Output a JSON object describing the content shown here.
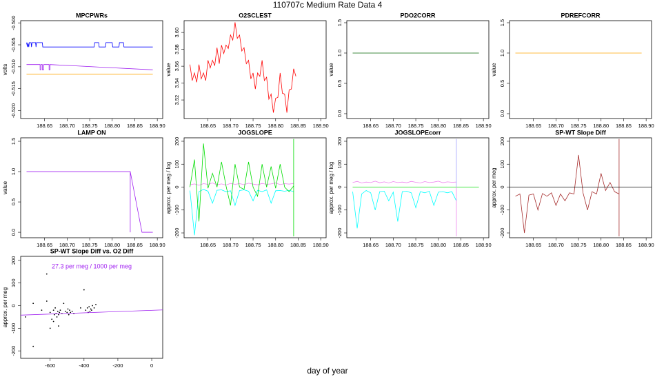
{
  "title": "110707c   Medium Rate Data 4",
  "x_label": "day of year",
  "chart_data": [
    {
      "type": "line",
      "title": "MPCPWRs",
      "y_label": "volts",
      "xlim": [
        188.597,
        188.912
      ],
      "xticks": [
        188.65,
        {
          "value": 188.7,
          "label": "188.70"
        },
        188.75,
        {
          "value": 188.8,
          "label": "188.80"
        },
        188.85,
        {
          "value": 188.9,
          "label": "188.90"
        }
      ],
      "ylim": [
        -0.5218,
        -0.4995
      ],
      "yticks": [
        {
          "value": -0.5,
          "label": "-0.500"
        },
        -0.505,
        {
          "value": -0.51,
          "label": "-0.510"
        },
        -0.515,
        {
          "value": -0.52,
          "label": "-0.520"
        }
      ],
      "series": [
        {
          "color": "#0000ff",
          "x": [
            188.61,
            188.612,
            188.613,
            188.615,
            188.616,
            188.62,
            188.621,
            188.622,
            188.63,
            188.631,
            188.632,
            188.645,
            188.646,
            188.76,
            188.761,
            188.77,
            188.771,
            188.785,
            188.786,
            188.8,
            188.801,
            188.815,
            188.816,
            188.825,
            188.826,
            188.89
          ],
          "values": [
            -0.5045,
            -0.5055,
            -0.5045,
            -0.5055,
            -0.5045,
            -0.5045,
            -0.5055,
            -0.5045,
            -0.5045,
            -0.5055,
            -0.5045,
            -0.5045,
            -0.5055,
            -0.5055,
            -0.5045,
            -0.5045,
            -0.5055,
            -0.5055,
            -0.5045,
            -0.5045,
            -0.5055,
            -0.5055,
            -0.5045,
            -0.5045,
            -0.5055,
            -0.5055
          ]
        },
        {
          "color": "#a020f0",
          "x": [
            188.61,
            188.64,
            188.64,
            188.642,
            188.642,
            188.645,
            188.645,
            188.648,
            188.648,
            188.66,
            188.66,
            188.662,
            188.662,
            188.89
          ],
          "values": [
            -0.5095,
            -0.5095,
            -0.5107,
            -0.5107,
            -0.5095,
            -0.5095,
            -0.5107,
            -0.5107,
            -0.5095,
            -0.5095,
            -0.5107,
            -0.5107,
            -0.5095,
            -0.5107
          ]
        },
        {
          "color": "#ffa500",
          "x": [
            188.61,
            188.89
          ],
          "values": [
            -0.5117,
            -0.5117
          ]
        }
      ]
    },
    {
      "type": "line",
      "title": "O2SCLEST",
      "y_label": "value",
      "xlim": [
        188.597,
        188.912
      ],
      "xticks": [
        188.65,
        {
          "value": 188.7,
          "label": "188.70"
        },
        188.75,
        {
          "value": 188.8,
          "label": "188.80"
        },
        188.85,
        {
          "value": 188.9,
          "label": "188.90"
        }
      ],
      "ylim": [
        3.498,
        3.614
      ],
      "yticks": [
        3.52,
        3.54,
        3.56,
        3.58,
        {
          "value": 3.6,
          "label": "3.60"
        }
      ],
      "x": [
        188.61,
        188.615,
        188.62,
        188.625,
        188.63,
        188.635,
        188.64,
        188.645,
        188.65,
        188.655,
        188.66,
        188.665,
        188.67,
        188.675,
        188.68,
        188.685,
        188.69,
        188.695,
        188.7,
        188.705,
        188.71,
        188.715,
        188.72,
        188.725,
        188.73,
        188.735,
        188.74,
        188.745,
        188.75,
        188.755,
        188.76,
        188.765,
        188.77,
        188.775,
        188.78,
        188.785,
        188.79,
        188.795,
        188.8,
        188.805,
        188.81,
        188.815,
        188.82,
        188.825,
        188.83,
        188.835,
        188.84,
        188.845
      ],
      "series": [
        {
          "color": "#ff0000",
          "values": [
            3.562,
            3.543,
            3.552,
            3.541,
            3.562,
            3.545,
            3.552,
            3.543,
            3.567,
            3.558,
            3.567,
            3.561,
            3.582,
            3.563,
            3.585,
            3.575,
            3.585,
            3.581,
            3.597,
            3.591,
            3.612,
            3.593,
            3.597,
            3.578,
            3.582,
            3.563,
            3.567,
            3.545,
            3.552,
            3.533,
            3.552,
            3.548,
            3.567,
            3.543,
            3.547,
            3.521,
            3.527,
            3.505,
            3.522,
            3.523,
            3.552,
            3.528,
            3.527,
            3.505,
            3.532,
            3.533,
            3.557,
            3.548
          ]
        }
      ]
    },
    {
      "type": "line",
      "title": "PDO2CORR",
      "y_label": "value",
      "xlim": [
        188.597,
        188.912
      ],
      "xticks": [
        188.65,
        {
          "value": 188.7,
          "label": "188.70"
        },
        188.75,
        {
          "value": 188.8,
          "label": "188.80"
        },
        188.85,
        {
          "value": 188.9,
          "label": "188.90"
        }
      ],
      "ylim": [
        -0.08,
        1.534
      ],
      "yticks": [
        {
          "value": 0,
          "label": "0.0"
        },
        0.5,
        {
          "value": 1,
          "label": "1.0"
        },
        1.5
      ],
      "series": [
        {
          "color": "#006400",
          "x": [
            188.61,
            188.89
          ],
          "values": [
            1,
            1
          ]
        }
      ]
    },
    {
      "type": "line",
      "title": "PDREFCORR",
      "y_label": "value",
      "xlim": [
        188.597,
        188.912
      ],
      "xticks": [
        188.65,
        {
          "value": 188.7,
          "label": "188.70"
        },
        188.75,
        {
          "value": 188.8,
          "label": "188.80"
        },
        188.85,
        {
          "value": 188.9,
          "label": "188.90"
        }
      ],
      "ylim": [
        -0.08,
        1.534
      ],
      "yticks": [
        {
          "value": 0,
          "label": "0.0"
        },
        0.5,
        {
          "value": 1,
          "label": "1.0"
        },
        1.5
      ],
      "series": [
        {
          "color": "#ffa500",
          "x": [
            188.61,
            188.89
          ],
          "values": [
            1,
            1
          ]
        }
      ]
    },
    {
      "type": "line",
      "title": "LAMP ON",
      "y_label": "value",
      "xlim": [
        188.597,
        188.912
      ],
      "xticks": [
        188.65,
        {
          "value": 188.7,
          "label": "188.70"
        },
        188.75,
        {
          "value": 188.8,
          "label": "188.80"
        },
        188.85,
        {
          "value": 188.9,
          "label": "188.90"
        }
      ],
      "ylim": [
        -0.09,
        1.557
      ],
      "yticks": [
        {
          "value": 0,
          "label": "0.0"
        },
        0.5,
        {
          "value": 1,
          "label": "1.0"
        },
        1.5
      ],
      "series": [
        {
          "color": "#a020f0",
          "x": [
            188.61,
            188.84,
            188.84,
            188.84,
            188.866,
            188.89
          ],
          "values": [
            1,
            1,
            0,
            1,
            0,
            0
          ]
        }
      ]
    },
    {
      "type": "line",
      "title": "JOGSLOPE",
      "y_label": "approx. per meg / log",
      "xlim": [
        188.597,
        188.912
      ],
      "xticks": [
        188.65,
        {
          "value": 188.7,
          "label": "188.70"
        },
        188.75,
        {
          "value": 188.8,
          "label": "188.80"
        },
        188.85,
        {
          "value": 188.9,
          "label": "188.90"
        }
      ],
      "ylim": [
        -221,
        215
      ],
      "yticks": [
        -200,
        -100,
        0,
        100,
        200
      ],
      "x": [
        188.61,
        188.62,
        188.63,
        188.64,
        188.65,
        188.66,
        188.67,
        188.68,
        188.69,
        188.7,
        188.71,
        188.72,
        188.73,
        188.74,
        188.75,
        188.76,
        188.77,
        188.78,
        188.79,
        188.8,
        188.81,
        188.82,
        188.83,
        188.84
      ],
      "series": [
        {
          "color": "#ee82ee",
          "values": [
            10,
            14,
            8,
            15,
            12,
            18,
            10,
            14,
            9,
            16,
            12,
            15,
            11,
            17,
            13,
            10,
            16,
            12,
            14,
            18,
            11,
            15,
            13,
            16
          ]
        },
        {
          "color": "#00ffff",
          "values": [
            -15,
            -210,
            -20,
            -10,
            -18,
            -70,
            -14,
            -12,
            -20,
            -16,
            -80,
            -15,
            -12,
            -18,
            -60,
            -14,
            -20,
            -12,
            -70,
            -16,
            -15,
            -18,
            -14,
            -20
          ]
        },
        {
          "color": "#00dd00",
          "values": [
            0,
            120,
            -150,
            190,
            -5,
            60,
            0,
            110,
            5,
            -80,
            100,
            0,
            -10,
            110,
            0,
            -40,
            100,
            0,
            90,
            -5,
            100,
            0,
            -20,
            5
          ]
        },
        {
          "color": "#00dd00",
          "x": [
            188.84,
            188.84
          ],
          "values": [
            -215,
            210
          ]
        }
      ]
    },
    {
      "type": "line",
      "title": "JOGSLOPEcorr",
      "y_label": "approx. per meg / log",
      "xlim": [
        188.597,
        188.912
      ],
      "xticks": [
        188.65,
        {
          "value": 188.7,
          "label": "188.70"
        },
        188.75,
        {
          "value": 188.8,
          "label": "188.80"
        },
        188.85,
        {
          "value": 188.9,
          "label": "188.90"
        }
      ],
      "ylim": [
        -221,
        215
      ],
      "yticks": [
        -200,
        -100,
        0,
        100,
        200
      ],
      "x": [
        188.61,
        188.62,
        188.63,
        188.64,
        188.65,
        188.66,
        188.67,
        188.68,
        188.69,
        188.7,
        188.71,
        188.72,
        188.73,
        188.74,
        188.75,
        188.76,
        188.77,
        188.78,
        188.79,
        188.8,
        188.81,
        188.82,
        188.83,
        188.84
      ],
      "series": [
        {
          "color": "#00dd00",
          "x": [
            188.61,
            188.89
          ],
          "values": [
            0,
            0
          ]
        },
        {
          "color": "#ee82ee",
          "values": [
            20,
            25,
            18,
            22,
            20,
            26,
            19,
            23,
            18,
            24,
            20,
            22,
            19,
            25,
            21,
            18,
            24,
            20,
            22,
            26,
            19,
            23,
            21,
            22
          ]
        },
        {
          "color": "#00ffff",
          "values": [
            -20,
            -180,
            -30,
            -15,
            -25,
            -100,
            -20,
            -18,
            -60,
            -22,
            -150,
            -20,
            -18,
            -25,
            -90,
            -20,
            -25,
            -18,
            -80,
            -22,
            -20,
            -25,
            -20,
            -60
          ]
        },
        {
          "color": "#a0a0ff",
          "x": [
            188.84,
            188.84
          ],
          "values": [
            0,
            210
          ]
        },
        {
          "color": "#ee82ee",
          "x": [
            188.84,
            188.84
          ],
          "values": [
            0,
            -215
          ]
        }
      ]
    },
    {
      "type": "line",
      "title": "SP-WT Slope Diff",
      "y_label": "approx. per meg",
      "xlim": [
        188.597,
        188.912
      ],
      "xticks": [
        188.65,
        {
          "value": 188.7,
          "label": "188.70"
        },
        188.75,
        {
          "value": 188.8,
          "label": "188.80"
        },
        188.85,
        {
          "value": 188.9,
          "label": "188.90"
        }
      ],
      "ylim": [
        -221,
        215
      ],
      "yticks": [
        -200,
        -100,
        0,
        100,
        200
      ],
      "hline": 0,
      "x": [
        188.61,
        188.62,
        188.63,
        188.64,
        188.65,
        188.66,
        188.67,
        188.68,
        188.69,
        188.7,
        188.71,
        188.72,
        188.73,
        188.74,
        188.75,
        188.76,
        188.77,
        188.78,
        188.79,
        188.8,
        188.81,
        188.82,
        188.83,
        188.84
      ],
      "series": [
        {
          "color": "#a52a2a",
          "values": [
            -40,
            -30,
            -200,
            -35,
            -30,
            -100,
            -28,
            -40,
            -25,
            -80,
            -30,
            -60,
            -25,
            -30,
            140,
            -25,
            -100,
            -20,
            -30,
            60,
            -15,
            20,
            -20,
            -30
          ]
        },
        {
          "color": "#a52a2a",
          "x": [
            188.84,
            188.84
          ],
          "values": [
            -215,
            210
          ]
        }
      ]
    },
    {
      "type": "scatter",
      "title": "SP-WT Slope Diff vs. O2 Diff",
      "y_label": "approx. per meg",
      "annotation": "27.3 per meg / 1000 per meg",
      "annotation_color": "#a020f0",
      "xlim": [
        -774,
        65
      ],
      "xticks": [
        -600,
        -400,
        -200,
        0
      ],
      "ylim": [
        -233,
        218
      ],
      "yticks": [
        -200,
        -100,
        0,
        100,
        200
      ],
      "color": "#000000",
      "x": [
        -745,
        -700,
        -650,
        -620,
        -600,
        -590,
        -580,
        -575,
        -570,
        -565,
        -560,
        -555,
        -550,
        -545,
        -540,
        -530,
        -520,
        -510,
        -500,
        -495,
        -490,
        -485,
        -480,
        -470,
        -460,
        -420,
        -400,
        -390,
        -380,
        -375,
        -370,
        -365,
        -360,
        -355,
        -350,
        -340,
        -330,
        -700,
        -550,
        -620,
        -580,
        -600
      ],
      "values": [
        -50,
        10,
        -20,
        140,
        -30,
        -60,
        -20,
        -40,
        -10,
        -35,
        -50,
        -25,
        -40,
        -30,
        -20,
        -35,
        10,
        -25,
        -30,
        -15,
        -40,
        -20,
        -30,
        -25,
        -35,
        -10,
        70,
        -20,
        -10,
        -30,
        -5,
        -25,
        -15,
        -20,
        0,
        -10,
        5,
        -180,
        -90,
        20,
        -70,
        -100
      ],
      "fit": {
        "color": "#a020f0",
        "x": [
          -774,
          65
        ],
        "values": [
          -42,
          -19
        ]
      }
    }
  ]
}
